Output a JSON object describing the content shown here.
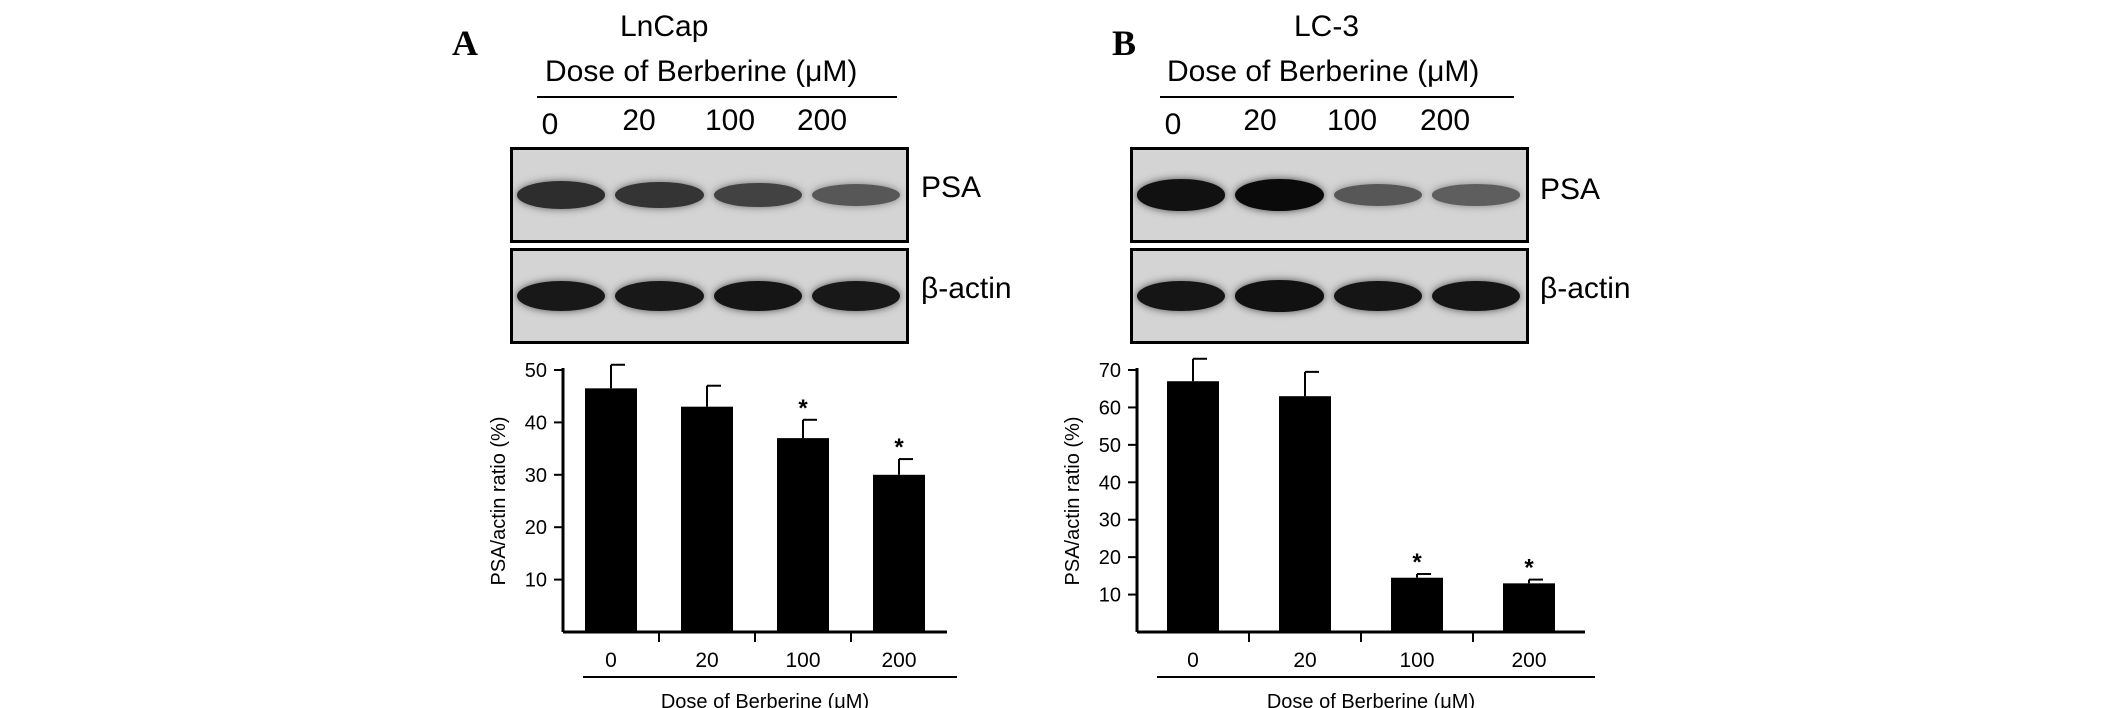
{
  "panels": [
    {
      "label": "A",
      "cell_line": "LnCap",
      "dose_header": "Dose of Berberine (μM)",
      "lanes": [
        "0",
        "20",
        "100",
        "200"
      ],
      "blots": [
        {
          "protein": "PSA",
          "band_intensity": [
            0.75,
            0.7,
            0.6,
            0.45
          ]
        },
        {
          "protein": "β-actin",
          "band_intensity": [
            0.9,
            0.9,
            0.92,
            0.9
          ]
        }
      ]
    },
    {
      "label": "B",
      "cell_line": "LC-3",
      "dose_header": "Dose of Berberine (μM)",
      "lanes": [
        "0",
        "20",
        "100",
        "200"
      ],
      "blots": [
        {
          "protein": "PSA",
          "band_intensity": [
            0.95,
            1.0,
            0.45,
            0.4
          ]
        },
        {
          "protein": "β-actin",
          "band_intensity": [
            0.92,
            0.95,
            0.92,
            0.92
          ]
        }
      ]
    }
  ],
  "chart_data": [
    {
      "type": "bar",
      "categories": [
        "0",
        "20",
        "100",
        "200"
      ],
      "values": [
        46.5,
        43,
        37,
        30
      ],
      "errors": [
        4.5,
        4,
        3.5,
        3
      ],
      "significance": [
        "",
        "",
        "*",
        "*"
      ],
      "xlabel": "Dose of Berberine (μM)",
      "ylabel": "PSA/actin ratio (%)",
      "ylim": [
        0,
        50
      ],
      "yticks": [
        10,
        20,
        30,
        40,
        50
      ],
      "bar_color": "#000000",
      "grid": false
    },
    {
      "type": "bar",
      "categories": [
        "0",
        "20",
        "100",
        "200"
      ],
      "values": [
        67,
        63,
        14.5,
        13
      ],
      "errors": [
        6,
        6.5,
        1,
        1
      ],
      "significance": [
        "",
        "",
        "*",
        "*"
      ],
      "xlabel": "Dose of Berberine (μM)",
      "ylabel": "PSA/actin ratio (%)",
      "ylim": [
        0,
        70
      ],
      "yticks": [
        10,
        20,
        30,
        40,
        50,
        60,
        70
      ],
      "bar_color": "#000000",
      "grid": false
    }
  ]
}
